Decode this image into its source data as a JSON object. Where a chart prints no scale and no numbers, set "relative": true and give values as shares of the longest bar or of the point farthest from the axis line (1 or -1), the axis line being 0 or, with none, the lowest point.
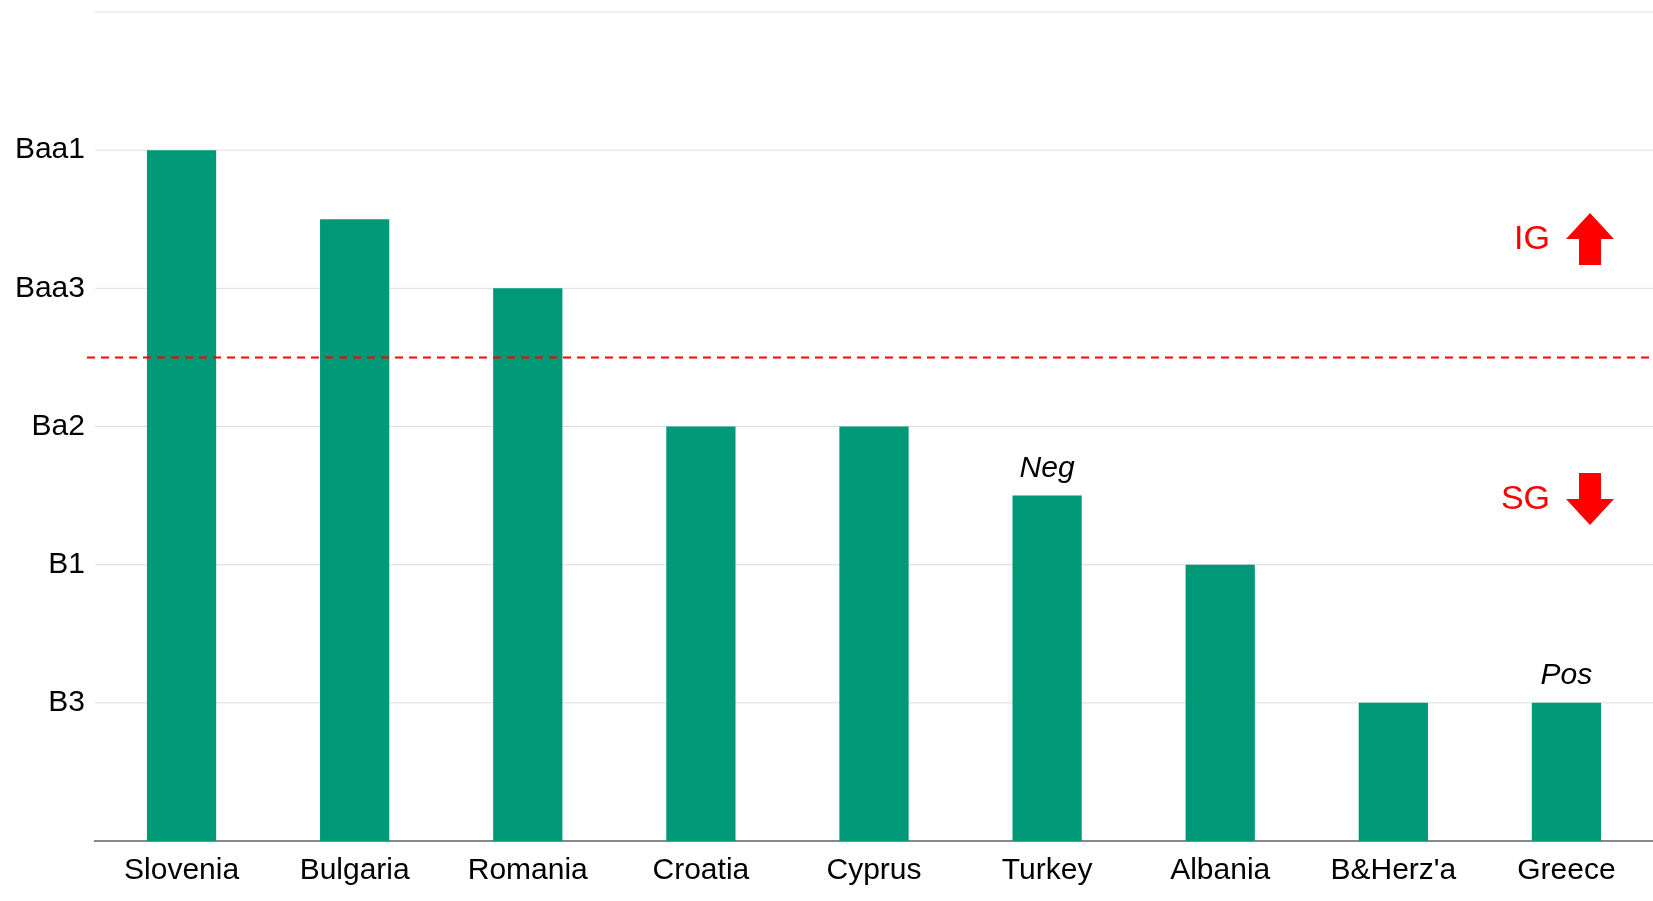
{
  "chart_data": {
    "type": "bar",
    "relative": true,
    "categories": [
      "Slovenia",
      "Bulgaria",
      "Romania",
      "Croatia",
      "Cyprus",
      "Turkey",
      "Albania",
      "B&Herz'a",
      "Greece"
    ],
    "series": [
      {
        "color": "#009977",
        "values": [
          1,
          0.9,
          0.8,
          0.6,
          0.6,
          0.5,
          0.4,
          0.2,
          0.2
        ]
      }
    ],
    "ref_lines": [
      {
        "axis": "y",
        "value": 0.7,
        "color": "#ff0000",
        "line_style": "dashed"
      },
      {
        "axis": "y",
        "value": 1.2,
        "color": "#dddddd",
        "line_style": "solid"
      },
      {
        "axis": "y",
        "value": 1,
        "label": "Baa1",
        "color": "#dddddd",
        "line_style": "solid"
      },
      {
        "axis": "y",
        "value": 0.8,
        "label": "Baa3",
        "color": "#dddddd",
        "line_style": "solid"
      },
      {
        "axis": "y",
        "value": 0.6,
        "label": "Ba2",
        "color": "#dddddd",
        "line_style": "solid"
      },
      {
        "axis": "y",
        "value": 0.4,
        "label": "B1",
        "color": "#dddddd",
        "line_style": "solid"
      },
      {
        "axis": "y",
        "value": 0.2,
        "label": "B3",
        "color": "#dddddd",
        "line_style": "solid"
      }
    ],
    "annotations": [
      {
        "text": "Neg",
        "x": "Turkey",
        "y": 0.5
      },
      {
        "text": "Pos",
        "x": "Greece",
        "y": 0.2
      },
      "IG",
      "SG"
    ]
  }
}
